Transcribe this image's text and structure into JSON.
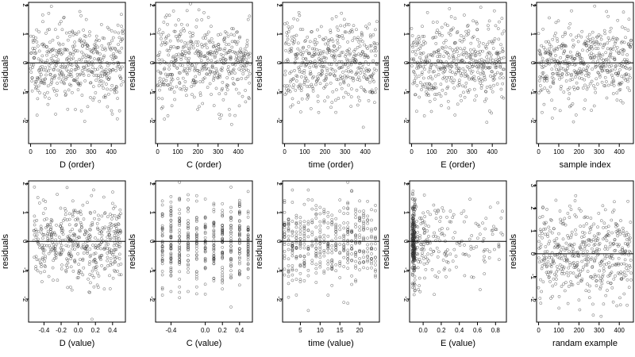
{
  "figure": {
    "background": "#ffffff",
    "point_color": "#333333"
  },
  "chart_data": [
    {
      "type": "scatter",
      "xlabel": "D (order)",
      "ylabel": "residuals",
      "xlim": [
        -10,
        470
      ],
      "ylim": [
        -2.8,
        2.1
      ],
      "xticks": [
        0,
        100,
        200,
        300,
        400
      ],
      "yticks": [
        -2,
        -1,
        0,
        1,
        2
      ],
      "hline": 0,
      "spread": 0.72,
      "xmode": "order",
      "seed": 11
    },
    {
      "type": "scatter",
      "xlabel": "C (order)",
      "ylabel": "residuals",
      "xlim": [
        -10,
        470
      ],
      "ylim": [
        -2.8,
        2.1
      ],
      "xticks": [
        0,
        100,
        200,
        300,
        400
      ],
      "yticks": [
        -2,
        -1,
        0,
        1,
        2
      ],
      "hline": 0,
      "spread": 0.72,
      "xmode": "order",
      "seed": 23
    },
    {
      "type": "scatter",
      "xlabel": "time (order)",
      "ylabel": "residuals",
      "xlim": [
        -10,
        470
      ],
      "ylim": [
        -2.8,
        2.1
      ],
      "xticks": [
        0,
        100,
        200,
        300,
        400
      ],
      "yticks": [
        -2,
        -1,
        0,
        1,
        2
      ],
      "hline": 0,
      "spread": 0.72,
      "xmode": "order",
      "seed": 37
    },
    {
      "type": "scatter",
      "xlabel": "E (order)",
      "ylabel": "residuals",
      "xlim": [
        -10,
        470
      ],
      "ylim": [
        -2.8,
        2.1
      ],
      "xticks": [
        0,
        100,
        200,
        300,
        400
      ],
      "yticks": [
        -2,
        -1,
        0,
        1,
        2
      ],
      "hline": 0,
      "spread": 0.72,
      "xmode": "order",
      "seed": 41
    },
    {
      "type": "scatter",
      "xlabel": "sample index",
      "ylabel": "residuals",
      "xlim": [
        -10,
        470
      ],
      "ylim": [
        -2.8,
        2.1
      ],
      "xticks": [
        0,
        100,
        200,
        300,
        400
      ],
      "yticks": [
        -2,
        -1,
        0,
        1,
        2
      ],
      "hline": 0,
      "spread": 0.72,
      "xmode": "order",
      "seed": 53
    },
    {
      "type": "scatter",
      "xlabel": "D (value)",
      "ylabel": "residuals",
      "xlim": [
        -0.58,
        0.55
      ],
      "ylim": [
        -2.8,
        2.1
      ],
      "xticks": [
        -0.4,
        -0.2,
        0.0,
        0.2,
        0.4
      ],
      "xticklabels": [
        "-0.4",
        "-0.2",
        "0.0",
        "0.2",
        "0.4"
      ],
      "yticks": [
        -2,
        -1,
        0,
        1,
        2
      ],
      "hline": 0,
      "spread": 0.72,
      "xmode": "uniform",
      "xrange": [
        -0.52,
        0.5
      ],
      "seed": 61
    },
    {
      "type": "scatter",
      "xlabel": "C (value)",
      "ylabel": "residuals",
      "xlim": [
        -0.58,
        0.55
      ],
      "ylim": [
        -2.8,
        2.1
      ],
      "xticks": [
        -0.4,
        -0.2,
        0.0,
        0.2,
        0.4
      ],
      "xticklabels": [
        "-0.4",
        "0.0",
        "0.2",
        "0.4"
      ],
      "xtickpos": [
        -0.4,
        0.0,
        0.2,
        0.4
      ],
      "yticks": [
        -2,
        -1,
        0,
        1,
        2
      ],
      "hline": 0,
      "spread": 0.72,
      "xmode": "discrete",
      "xlevels": [
        -0.5,
        -0.4,
        -0.3,
        -0.2,
        -0.1,
        0.0,
        0.1,
        0.2,
        0.3,
        0.4,
        0.5
      ],
      "seed": 71
    },
    {
      "type": "scatter",
      "xlabel": "time (value)",
      "ylabel": "residuals",
      "xlim": [
        0.5,
        25
      ],
      "ylim": [
        -2.8,
        2.1
      ],
      "xticks": [
        5,
        10,
        15,
        20
      ],
      "yticks": [
        -2,
        -1,
        0,
        1,
        2
      ],
      "hline": 0,
      "spread": 0.72,
      "xmode": "discrete",
      "xlevels": [
        1,
        2,
        3,
        4,
        5,
        6,
        7,
        8,
        9,
        10,
        11,
        12,
        13,
        14,
        15,
        16,
        17,
        18,
        19,
        20,
        21,
        22,
        23,
        24
      ],
      "seed": 83
    },
    {
      "type": "scatter",
      "xlabel": "E (value)",
      "ylabel": "residuals",
      "xlim": [
        -0.15,
        0.92
      ],
      "ylim": [
        -2.8,
        2.1
      ],
      "xticks": [
        0.0,
        0.2,
        0.4,
        0.6,
        0.8
      ],
      "xticklabels": [
        "0.0",
        "0.2",
        "0.4",
        "0.6",
        "0.8"
      ],
      "yticks": [
        -2,
        -1,
        0,
        1,
        2
      ],
      "hline": 0,
      "spread": 0.72,
      "xmode": "skewed",
      "xrange": [
        -0.12,
        0.88
      ],
      "seed": 97
    },
    {
      "type": "scatter",
      "xlabel": "randam example",
      "ylabel": "residuals",
      "xlim": [
        -10,
        470
      ],
      "ylim": [
        -3.0,
        3.2
      ],
      "xticks": [
        0,
        100,
        200,
        300,
        400
      ],
      "yticks": [
        -2,
        -1,
        0,
        1,
        2,
        3
      ],
      "hline": 0,
      "spread": 1.0,
      "xmode": "order",
      "seed": 101
    }
  ]
}
